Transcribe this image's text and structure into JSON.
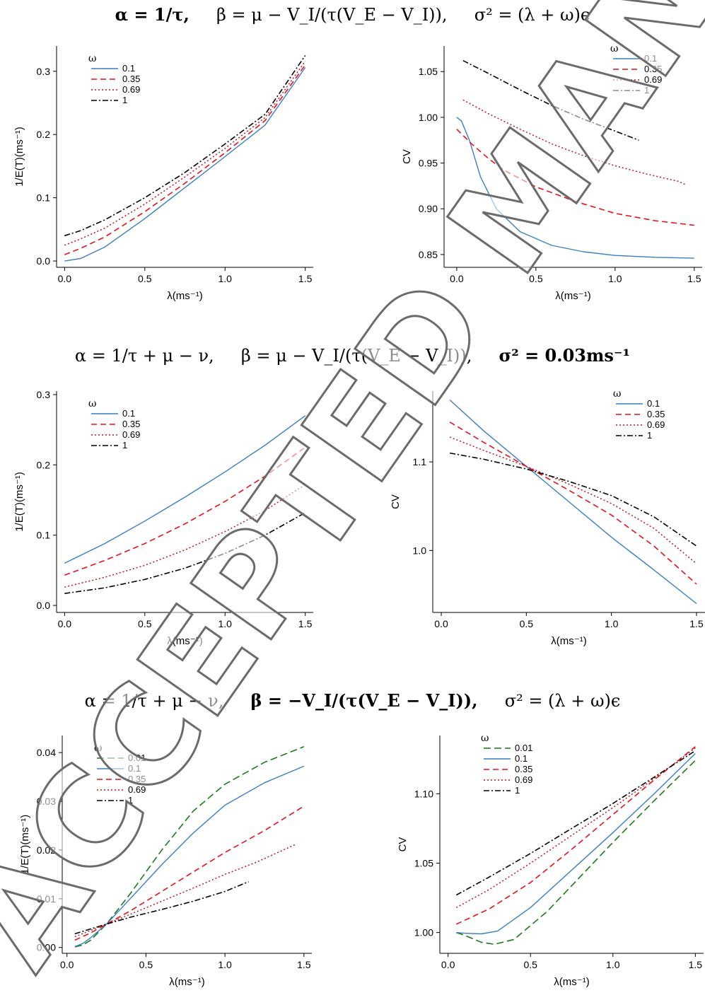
{
  "titles": {
    "row1": {
      "alpha": "α = 1/τ,",
      "beta": "β = μ − V_I/(τ(V_E − V_I)),",
      "sigma": "σ² = (λ + ω)ϵ"
    },
    "row2": {
      "alpha": "α = 1/τ + μ − ν,",
      "beta": "β = μ − V_I/(τ(V_E − V_I)),",
      "sigma": "σ² = 0.03ms⁻¹"
    },
    "row3": {
      "alpha": "α = 1/τ + μ − ν,",
      "beta": "β = −V_I/(τ(V_E − V_I)),",
      "sigma": "σ² = (λ + ω)ϵ"
    }
  },
  "watermark": "ACCEPTED MANUSCRIPT",
  "colors": {
    "0.01": "#1a7a1a",
    "0.1": "#3a7fc4",
    "0.35": "#e8111b",
    "0.69": "#c0151c",
    "1": "#000000"
  },
  "chart_data": [
    {
      "id": "p1",
      "type": "line",
      "xlabel": "λ(ms⁻¹)",
      "ylabel": "1/E(T)(ms⁻¹)",
      "xlim": [
        -0.05,
        1.55
      ],
      "ylim": [
        -0.01,
        0.34
      ],
      "xticks": [
        "0.0",
        "0.5",
        "1.0",
        "1.5"
      ],
      "yticks": [
        "0.0",
        "0.1",
        "0.2",
        "0.3"
      ],
      "legend_title": "ω",
      "legend_position": "top-left",
      "series": [
        {
          "name": "0.1",
          "x": [
            0,
            0.1,
            0.25,
            0.5,
            0.75,
            1.0,
            1.25,
            1.5
          ],
          "y": [
            0.0,
            0.004,
            0.022,
            0.067,
            0.116,
            0.165,
            0.215,
            0.306
          ]
        },
        {
          "name": "0.35",
          "x": [
            0,
            0.1,
            0.25,
            0.5,
            0.75,
            1.0,
            1.25,
            1.5
          ],
          "y": [
            0.01,
            0.02,
            0.038,
            0.078,
            0.123,
            0.171,
            0.222,
            0.31
          ]
        },
        {
          "name": "0.69",
          "x": [
            0,
            0.1,
            0.25,
            0.5,
            0.75,
            1.0,
            1.25,
            1.5
          ],
          "y": [
            0.025,
            0.035,
            0.052,
            0.09,
            0.133,
            0.178,
            0.227,
            0.316
          ]
        },
        {
          "name": "1",
          "x": [
            0,
            0.1,
            0.25,
            0.5,
            0.75,
            1.0,
            1.25,
            1.5
          ],
          "y": [
            0.04,
            0.048,
            0.065,
            0.1,
            0.14,
            0.185,
            0.232,
            0.325
          ]
        }
      ]
    },
    {
      "id": "p2",
      "type": "line",
      "xlabel": "λ(ms⁻¹)",
      "ylabel": "CV",
      "xlim": [
        -0.08,
        1.55
      ],
      "ylim": [
        0.836,
        1.078
      ],
      "xticks": [
        "0.0",
        "0.5",
        "1.0",
        "1.5"
      ],
      "yticks": [
        "0.85",
        "0.90",
        "0.95",
        "1.00",
        "1.05"
      ],
      "legend_title": "ω",
      "legend_position": "top-right",
      "series": [
        {
          "name": "0.1",
          "x": [
            0,
            0.03,
            0.08,
            0.15,
            0.25,
            0.4,
            0.6,
            0.8,
            1.0,
            1.25,
            1.5
          ],
          "y": [
            1.0,
            0.996,
            0.975,
            0.935,
            0.9,
            0.875,
            0.86,
            0.853,
            0.849,
            0.847,
            0.846
          ]
        },
        {
          "name": "0.35",
          "x": [
            0,
            0.1,
            0.2,
            0.3,
            0.5,
            0.75,
            1.0,
            1.25,
            1.5
          ],
          "y": [
            0.987,
            0.97,
            0.955,
            0.942,
            0.924,
            0.908,
            0.895,
            0.887,
            0.882
          ]
        },
        {
          "name": "0.69",
          "x": [
            0.04,
            0.2,
            0.4,
            0.6,
            0.8,
            1.0,
            1.2,
            1.4,
            1.45
          ],
          "y": [
            1.019,
            1.004,
            0.987,
            0.971,
            0.958,
            0.947,
            0.938,
            0.93,
            0.926
          ]
        },
        {
          "name": "1",
          "x": [
            0.04,
            0.2,
            0.4,
            0.6,
            0.8,
            1.0,
            1.15
          ],
          "y": [
            1.062,
            1.048,
            1.03,
            1.013,
            0.998,
            0.985,
            0.975
          ]
        }
      ]
    },
    {
      "id": "p3",
      "type": "line",
      "xlabel": "λ(ms⁻¹)",
      "ylabel": "1/E(T)(ms⁻¹)",
      "xlim": [
        -0.05,
        1.55
      ],
      "ylim": [
        -0.01,
        0.305
      ],
      "xticks": [
        "0.0",
        "0.5",
        "1.0",
        "1.5"
      ],
      "yticks": [
        "0.0",
        "0.1",
        "0.2",
        "0.3"
      ],
      "legend_title": "ω",
      "legend_position": "top-left",
      "series": [
        {
          "name": "0.1",
          "x": [
            0,
            0.25,
            0.5,
            0.75,
            1.0,
            1.25,
            1.5
          ],
          "y": [
            0.06,
            0.088,
            0.12,
            0.154,
            0.19,
            0.228,
            0.27
          ]
        },
        {
          "name": "0.35",
          "x": [
            0,
            0.25,
            0.5,
            0.75,
            1.0,
            1.25,
            1.5
          ],
          "y": [
            0.043,
            0.064,
            0.088,
            0.116,
            0.148,
            0.184,
            0.225
          ]
        },
        {
          "name": "0.69",
          "x": [
            0,
            0.25,
            0.5,
            0.75,
            1.0,
            1.25,
            1.5
          ],
          "y": [
            0.026,
            0.04,
            0.057,
            0.079,
            0.105,
            0.135,
            0.172
          ]
        },
        {
          "name": "1",
          "x": [
            0,
            0.25,
            0.5,
            0.75,
            1.0,
            1.25,
            1.5
          ],
          "y": [
            0.017,
            0.025,
            0.037,
            0.053,
            0.074,
            0.1,
            0.132
          ]
        }
      ]
    },
    {
      "id": "p4",
      "type": "line",
      "xlabel": "λ(ms⁻¹)",
      "ylabel": "CV",
      "xlim": [
        -0.05,
        1.55
      ],
      "ylim": [
        0.93,
        1.18
      ],
      "xticks": [
        "0.0",
        "0.5",
        "1.0",
        "1.5"
      ],
      "yticks": [
        "1.0",
        "1.1"
      ],
      "legend_title": "ω",
      "legend_position": "top-right",
      "series": [
        {
          "name": "0.1",
          "x": [
            0.05,
            0.25,
            0.5,
            0.75,
            1.0,
            1.25,
            1.5
          ],
          "y": [
            1.17,
            1.135,
            1.095,
            1.055,
            1.015,
            0.978,
            0.94
          ]
        },
        {
          "name": "0.35",
          "x": [
            0.05,
            0.25,
            0.5,
            0.75,
            1.0,
            1.25,
            1.5
          ],
          "y": [
            1.145,
            1.122,
            1.095,
            1.068,
            1.04,
            1.005,
            0.962
          ]
        },
        {
          "name": "0.69",
          "x": [
            0.05,
            0.25,
            0.5,
            0.75,
            1.0,
            1.25,
            1.5
          ],
          "y": [
            1.128,
            1.113,
            1.095,
            1.075,
            1.053,
            1.025,
            0.985
          ]
        },
        {
          "name": "1",
          "x": [
            0.05,
            0.25,
            0.5,
            0.75,
            1.0,
            1.25,
            1.5
          ],
          "y": [
            1.11,
            1.103,
            1.092,
            1.078,
            1.062,
            1.038,
            1.005
          ]
        }
      ]
    },
    {
      "id": "p5",
      "type": "line",
      "xlabel": "λ(ms⁻¹)",
      "ylabel": "1/E(T)(ms⁻¹)",
      "xlim": [
        -0.03,
        1.55
      ],
      "ylim": [
        -0.0012,
        0.0435
      ],
      "xticks": [
        "0.0",
        "0.5",
        "1.0",
        "1.5"
      ],
      "yticks": [
        "0.00",
        "0.01",
        "0.02",
        "0.03",
        "0.04"
      ],
      "legend_title": "ω",
      "legend_position": "top-left",
      "series": [
        {
          "name": "0.01",
          "x": [
            0.05,
            0.1,
            0.15,
            0.25,
            0.4,
            0.6,
            0.8,
            1.0,
            1.25,
            1.5
          ],
          "y": [
            0.0001,
            0.0005,
            0.0015,
            0.0048,
            0.011,
            0.02,
            0.028,
            0.0335,
            0.038,
            0.0412
          ]
        },
        {
          "name": "0.1",
          "x": [
            0.05,
            0.1,
            0.15,
            0.25,
            0.4,
            0.6,
            0.8,
            1.0,
            1.25,
            1.5
          ],
          "y": [
            0.0002,
            0.0008,
            0.002,
            0.0048,
            0.01,
            0.017,
            0.0235,
            0.0292,
            0.0338,
            0.0372
          ]
        },
        {
          "name": "0.35",
          "x": [
            0.05,
            0.15,
            0.25,
            0.4,
            0.6,
            0.8,
            1.0,
            1.25,
            1.5
          ],
          "y": [
            0.0015,
            0.003,
            0.0048,
            0.0075,
            0.0115,
            0.0155,
            0.0195,
            0.024,
            0.029
          ]
        },
        {
          "name": "0.69",
          "x": [
            0.05,
            0.15,
            0.25,
            0.4,
            0.6,
            0.8,
            1.0,
            1.2,
            1.45
          ],
          "y": [
            0.0022,
            0.0035,
            0.0048,
            0.0068,
            0.0095,
            0.0122,
            0.015,
            0.0175,
            0.0212
          ]
        },
        {
          "name": "1",
          "x": [
            0.05,
            0.15,
            0.25,
            0.4,
            0.6,
            0.8,
            1.0,
            1.15
          ],
          "y": [
            0.0028,
            0.0038,
            0.0048,
            0.0062,
            0.0078,
            0.0095,
            0.0115,
            0.0135
          ]
        }
      ]
    },
    {
      "id": "p6",
      "type": "line",
      "xlabel": "λ(ms⁻¹)",
      "ylabel": "CV",
      "xlim": [
        -0.05,
        1.55
      ],
      "ylim": [
        0.985,
        1.142
      ],
      "xticks": [
        "0.0",
        "0.5",
        "1.0",
        "1.5"
      ],
      "yticks": [
        "1.00",
        "1.05",
        "1.10"
      ],
      "legend_title": "ω",
      "legend_position": "top-left",
      "series": [
        {
          "name": "0.01",
          "x": [
            0.05,
            0.1,
            0.2,
            0.28,
            0.4,
            0.6,
            0.8,
            1.0,
            1.25,
            1.5
          ],
          "y": [
            1.0,
            0.998,
            0.993,
            0.9915,
            0.995,
            1.015,
            1.04,
            1.065,
            1.095,
            1.124
          ]
        },
        {
          "name": "0.1",
          "x": [
            0.05,
            0.1,
            0.2,
            0.3,
            0.5,
            0.75,
            1.0,
            1.25,
            1.5
          ],
          "y": [
            1.0,
            0.9995,
            0.999,
            1.001,
            1.018,
            1.045,
            1.072,
            1.1,
            1.129
          ]
        },
        {
          "name": "0.35",
          "x": [
            0.05,
            0.25,
            0.5,
            0.75,
            1.0,
            1.25,
            1.5
          ],
          "y": [
            1.006,
            1.017,
            1.036,
            1.06,
            1.085,
            1.11,
            1.134
          ]
        },
        {
          "name": "0.69",
          "x": [
            0.05,
            0.25,
            0.5,
            0.75,
            1.0,
            1.25,
            1.5
          ],
          "y": [
            1.018,
            1.031,
            1.05,
            1.07,
            1.09,
            1.111,
            1.133
          ]
        },
        {
          "name": "1",
          "x": [
            0.05,
            0.25,
            0.5,
            0.75,
            1.0,
            1.25,
            1.5
          ],
          "y": [
            1.027,
            1.04,
            1.057,
            1.075,
            1.093,
            1.112,
            1.131
          ]
        }
      ]
    }
  ]
}
